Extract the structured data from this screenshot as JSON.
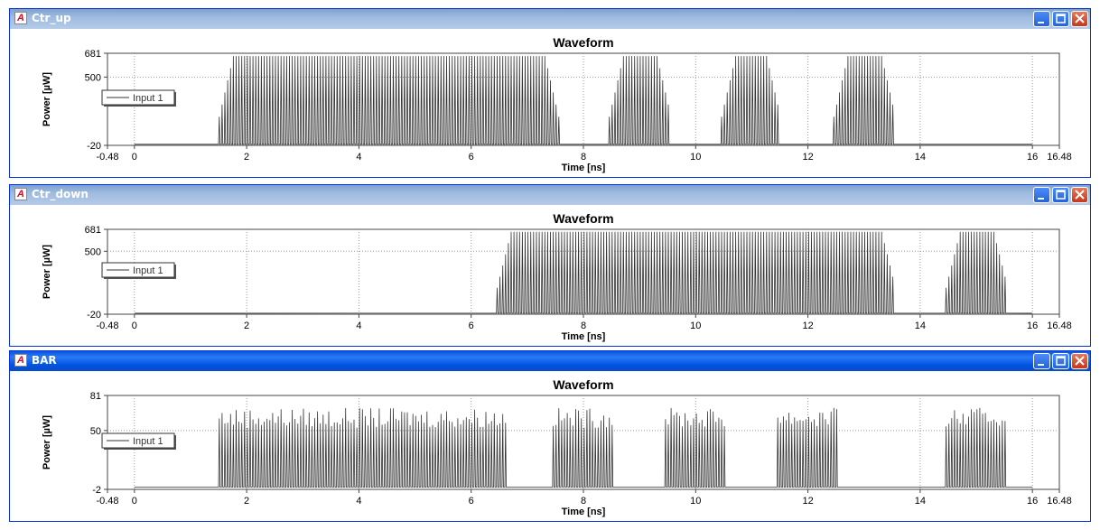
{
  "windows": [
    {
      "id": "ctr-up",
      "title": "Ctr_up",
      "active": false,
      "chart_data": {
        "type": "line",
        "title": "Waveform",
        "xlabel": "Time [ns]",
        "ylabel": "Power [µW]",
        "xlim": [
          -0.48,
          16.48
        ],
        "ylim": [
          -20,
          681
        ],
        "x_ticks": [
          "-0.48",
          "0",
          "2",
          "4",
          "6",
          "8",
          "10",
          "12",
          "14",
          "16",
          "16.48"
        ],
        "y_ticks": [
          "681",
          "500",
          "-20"
        ],
        "grid": true,
        "legend": "left",
        "series": [
          {
            "name": "Input 1",
            "color": "#333333",
            "baseline": -12,
            "peak": 660,
            "pulse_period_ns": 0.05,
            "bursts": [
              [
                1.5,
                7.55
              ],
              [
                8.45,
                9.55
              ],
              [
                10.45,
                11.5
              ],
              [
                12.45,
                13.55
              ]
            ]
          }
        ]
      }
    },
    {
      "id": "ctr-down",
      "title": "Ctr_down",
      "active": false,
      "chart_data": {
        "type": "line",
        "title": "Waveform",
        "xlabel": "Time [ns]",
        "ylabel": "Power [µW]",
        "xlim": [
          -0.48,
          16.48
        ],
        "ylim": [
          -20,
          681
        ],
        "x_ticks": [
          "-0.48",
          "0",
          "2",
          "4",
          "6",
          "8",
          "10",
          "12",
          "14",
          "16",
          "16.48"
        ],
        "y_ticks": [
          "681",
          "500",
          "-20"
        ],
        "grid": true,
        "legend": "left",
        "series": [
          {
            "name": "Input 1",
            "color": "#333333",
            "baseline": -12,
            "peak": 660,
            "pulse_period_ns": 0.05,
            "bursts": [
              [
                6.45,
                13.55
              ],
              [
                14.45,
                15.55
              ]
            ]
          }
        ]
      }
    },
    {
      "id": "bar",
      "title": "BAR",
      "active": true,
      "chart_data": {
        "type": "line",
        "title": "Waveform",
        "xlabel": "Time [ns]",
        "ylabel": "Power [µW]",
        "xlim": [
          -0.48,
          16.48
        ],
        "ylim": [
          -2,
          81
        ],
        "x_ticks": [
          "-0.48",
          "0",
          "2",
          "4",
          "6",
          "8",
          "10",
          "12",
          "14",
          "16",
          "16.48"
        ],
        "y_ticks": [
          "81",
          "50",
          "-2"
        ],
        "grid": true,
        "legend": "left",
        "series": [
          {
            "name": "Input 1",
            "color": "#333333",
            "baseline": 0,
            "peak": 70,
            "pulse_period_ns": 0.05,
            "bursts": [
              [
                1.5,
                6.6
              ],
              [
                7.45,
                8.55
              ],
              [
                9.45,
                10.55
              ],
              [
                11.45,
                12.55
              ],
              [
                14.45,
                15.55
              ]
            ]
          }
        ]
      }
    }
  ]
}
